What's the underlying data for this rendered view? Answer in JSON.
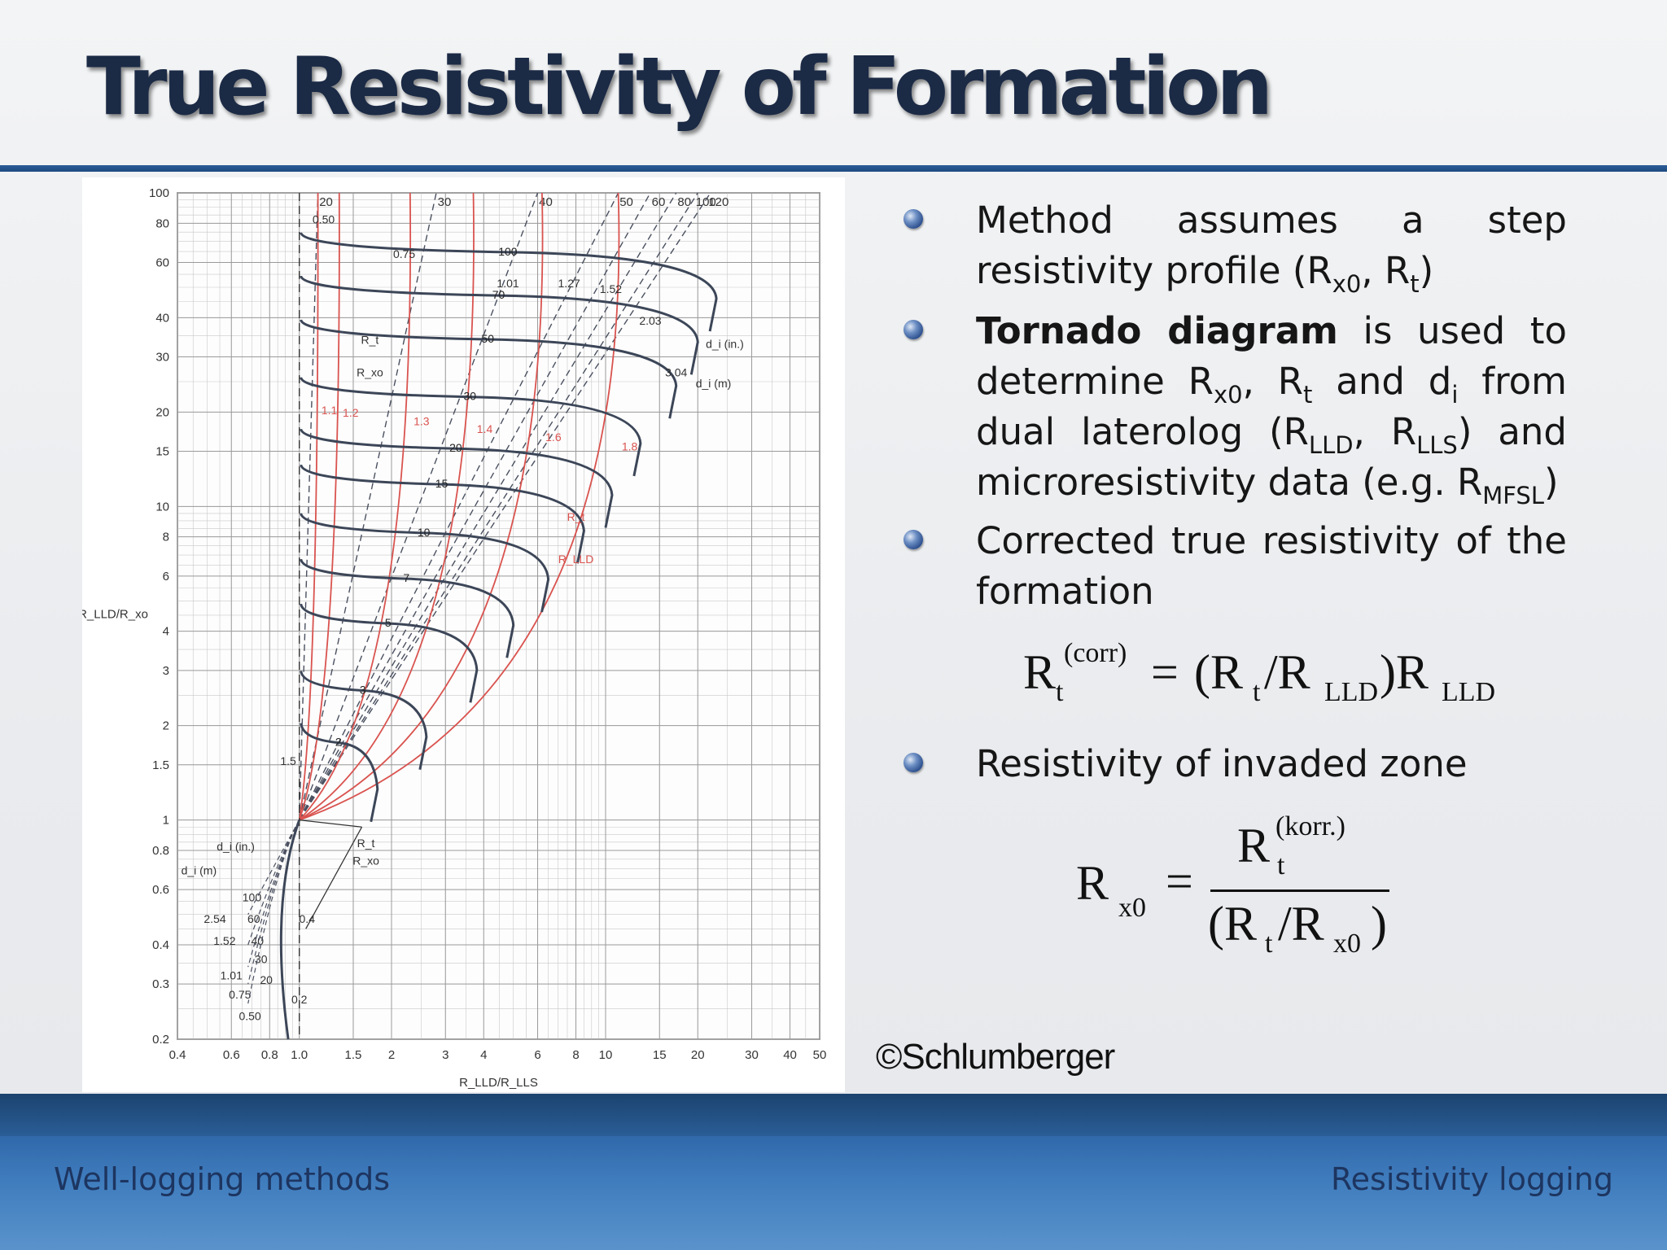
{
  "slide": {
    "title": "True Resistivity of Formation",
    "credit": "©Schlumberger",
    "footer_left": "Well-logging methods",
    "footer_right": "Resistivity logging"
  },
  "colors": {
    "title": "#1b2a45",
    "rule": "#1e4a80",
    "footer": "#3f7cbd",
    "chart_grid": "#9a9a9a",
    "chart_dark_curve": "#3c4658",
    "chart_red_curve": "#d9534f"
  },
  "bullets": [
    {
      "icon": "bullet-sphere-icon",
      "parts": [
        "Method assumes a step resistivity profile (R",
        "x0",
        ", R",
        "t",
        ")"
      ]
    },
    {
      "icon": "bullet-sphere-icon",
      "bold": "Tornado diagram",
      "parts": [
        " is used to determine R",
        "x0",
        ", R",
        "t",
        " and d",
        "i",
        " from dual laterolog (R",
        "LLD",
        ", R",
        "LLS",
        ") and microresistivity data (e.g. R",
        "MFSL",
        ")"
      ]
    },
    {
      "icon": "bullet-sphere-icon",
      "parts": [
        "Corrected true resistivity of the formation"
      ]
    },
    {
      "icon": "bullet-sphere-icon",
      "parts": [
        "Resistivity of invaded zone"
      ]
    }
  ],
  "formula1": {
    "lhs": "R",
    "lhs_sub": "t",
    "lhs_sup": "(corr)",
    "eq": "=",
    "rhs": "(R",
    "t_sub": "t",
    "slash": "/R",
    "lld_sub": "LLD",
    "close": ")R",
    "lld2_sub": "LLD"
  },
  "formula2": {
    "lhs": "R",
    "lhs_sub": "x0",
    "eq": "=",
    "num": "R",
    "num_sub": "t",
    "num_sup": "(korr.)",
    "den_open": "(R",
    "den_t": "t",
    "den_slash": "/R",
    "den_x0": "x0",
    "den_close": ")"
  },
  "chart_data": {
    "type": "line",
    "xlabel": "R_LLD/R_LLS",
    "ylabel": "R_LLD/R_xo",
    "x_scale": "log",
    "y_scale": "log",
    "xlim": [
      0.4,
      50
    ],
    "ylim": [
      0.2,
      100
    ],
    "x_ticks": [
      "0.4",
      "0.6",
      "0.8",
      "1.0",
      "1.5",
      "2",
      "3",
      "4",
      "6",
      "8",
      "10",
      "15",
      "20",
      "30",
      "40",
      "50"
    ],
    "x_tick_values": [
      0.4,
      0.6,
      0.8,
      1.0,
      1.5,
      2,
      3,
      4,
      6,
      8,
      10,
      15,
      20,
      30,
      40,
      50
    ],
    "y_ticks": [
      "100",
      "80",
      "60",
      "40",
      "30",
      "20",
      "15",
      "10",
      "8",
      "6",
      "4",
      "3",
      "2",
      "1.5",
      "1",
      "0.8",
      "0.6",
      "0.4",
      "0.3",
      "0.2"
    ],
    "y_tick_values": [
      100,
      80,
      60,
      40,
      30,
      20,
      15,
      10,
      8,
      6,
      4,
      3,
      2,
      1.5,
      1,
      0.8,
      0.6,
      0.4,
      0.3,
      0.2
    ],
    "grid": true,
    "rt_rxo_curves": [
      {
        "label": "100",
        "apex": [
          23,
          55
        ]
      },
      {
        "label": "70",
        "apex": [
          20,
          40
        ]
      },
      {
        "label": "50",
        "apex": [
          17,
          29
        ]
      },
      {
        "label": "30",
        "apex": [
          13,
          19
        ]
      },
      {
        "label": "20",
        "apex": [
          10.5,
          13
        ]
      },
      {
        "label": "15",
        "apex": [
          8.5,
          10
        ]
      },
      {
        "label": "10",
        "apex": [
          6.5,
          7
        ]
      },
      {
        "label": "7",
        "apex": [
          5,
          5
        ]
      },
      {
        "label": "5",
        "apex": [
          3.8,
          3.6
        ]
      },
      {
        "label": "3",
        "apex": [
          2.6,
          2.2
        ]
      },
      {
        "label": "2",
        "apex": [
          1.8,
          1.5
        ]
      }
    ],
    "rt_rlld_curves": [
      {
        "label": "1.1",
        "top": [
          1.15,
          100
        ]
      },
      {
        "label": "1.2",
        "top": [
          1.35,
          100
        ]
      },
      {
        "label": "1.3",
        "top": [
          2.3,
          100
        ]
      },
      {
        "label": "1.4",
        "top": [
          3.7,
          100
        ]
      },
      {
        "label": "1.6",
        "top": [
          6.2,
          100
        ]
      },
      {
        "label": "1.8",
        "top": [
          11,
          100
        ]
      }
    ],
    "di_in_lines": [
      {
        "label": "20",
        "top": [
          1.15,
          100
        ]
      },
      {
        "label": "30",
        "top": [
          2.8,
          100
        ]
      },
      {
        "label": "40",
        "top": [
          6,
          100
        ]
      },
      {
        "label": "50",
        "top": [
          11,
          100
        ]
      },
      {
        "label": "60",
        "top": [
          14,
          100
        ]
      },
      {
        "label": "80",
        "top": [
          17,
          100
        ]
      },
      {
        "label": "100",
        "top": [
          20,
          100
        ]
      },
      {
        "label": "120",
        "top": [
          22,
          100
        ]
      }
    ],
    "di_m_labels": [
      "0.50",
      "0.75",
      "1.01",
      "1.27",
      "1.52",
      "2.03",
      "3.04"
    ],
    "annotations": {
      "di_in": "d_i (in.)",
      "di_m": "d_i (m)",
      "rt_rxo_num": "R_t",
      "rt_rxo_den": "R_xo",
      "rt_rlld_num": "R_t",
      "rt_rlld_den": "R_LLD",
      "low_rxo_labels": [
        "1.5"
      ],
      "low_in_labels": [
        "100",
        "60",
        "40",
        "30",
        "20"
      ],
      "low_m_labels": [
        "2.54",
        "1.52",
        "1.01",
        "0.75",
        "0.50"
      ],
      "low_misc": [
        "0.4",
        "0.2"
      ]
    }
  }
}
